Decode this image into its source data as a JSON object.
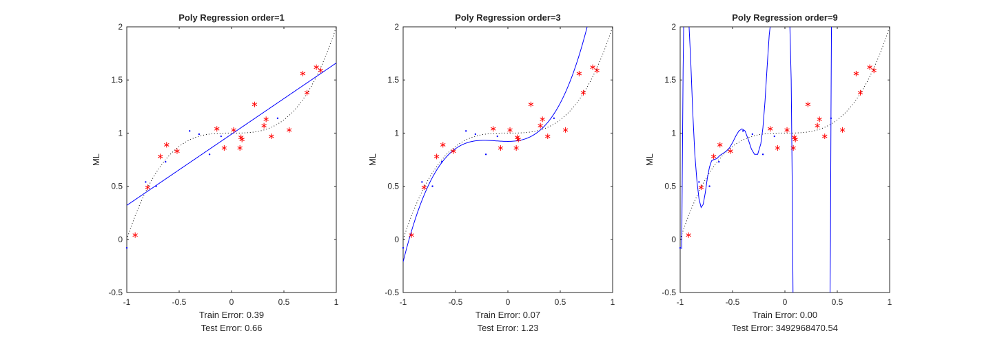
{
  "figure": {
    "background": "#ffffff"
  },
  "colors": {
    "train": "#ff0000",
    "test": "#0000ff",
    "fit": "#0000ff",
    "truth": "#000000",
    "axis": "#262626"
  },
  "chart_data": [
    {
      "type": "scatter",
      "title": "Poly Regression order=1",
      "ylabel": "ML",
      "xlim": [
        -1,
        1
      ],
      "ylim": [
        -0.5,
        2
      ],
      "xticks": [
        "-1",
        "-0.5",
        "0",
        "0.5",
        "1"
      ],
      "yticks": [
        "-0.5",
        "0",
        "0.5",
        "1",
        "1.5",
        "2"
      ],
      "grid": false,
      "order": 1,
      "coefficients": [
        0.99,
        0.67
      ],
      "train_error_label": "Train Error: 0.39",
      "test_error_label": "Test Error: 0.66",
      "series": [
        {
          "role": "train",
          "marker": "*",
          "x": [
            -0.92,
            -0.8,
            -0.68,
            -0.62,
            -0.52,
            -0.14,
            -0.07,
            0.02,
            0.08,
            0.09,
            0.1,
            0.22,
            0.31,
            0.33,
            0.38,
            0.55,
            0.68,
            0.72,
            0.81,
            0.85
          ],
          "y": [
            0.04,
            0.49,
            0.78,
            0.89,
            0.83,
            1.04,
            0.86,
            1.03,
            0.86,
            0.96,
            0.94,
            1.27,
            1.07,
            1.13,
            0.97,
            1.03,
            1.56,
            1.38,
            1.62,
            1.59
          ]
        },
        {
          "role": "test",
          "marker": ".",
          "x": [
            -1.0,
            -0.82,
            -0.72,
            -0.63,
            -0.4,
            -0.31,
            -0.21,
            -0.1,
            0.44
          ],
          "y": [
            -0.08,
            0.54,
            0.5,
            0.73,
            1.02,
            0.99,
            0.8,
            0.97,
            1.14
          ]
        },
        {
          "role": "truth",
          "style": "dotted",
          "function": "x^3 + 1"
        },
        {
          "role": "fit",
          "style": "solid",
          "function": "polynomial"
        }
      ]
    },
    {
      "type": "scatter",
      "title": "Poly Regression order=3",
      "ylabel": "ML",
      "xlim": [
        -1,
        1
      ],
      "ylim": [
        -0.5,
        2
      ],
      "xticks": [
        "-1",
        "-0.5",
        "0",
        "0.5",
        "1"
      ],
      "yticks": [
        "-0.5",
        "0",
        "0.5",
        "1",
        "1.5",
        "2"
      ],
      "grid": false,
      "order": 3,
      "coefficients": [
        0.922,
        0.0,
        0.5833,
        1.7167
      ],
      "train_error_label": "Train Error: 0.07",
      "test_error_label": "Test Error: 1.23",
      "series": [
        {
          "role": "train",
          "marker": "*",
          "x": [
            -0.92,
            -0.8,
            -0.68,
            -0.62,
            -0.52,
            -0.14,
            -0.07,
            0.02,
            0.08,
            0.09,
            0.1,
            0.22,
            0.31,
            0.33,
            0.38,
            0.55,
            0.68,
            0.72,
            0.81,
            0.85
          ],
          "y": [
            0.04,
            0.49,
            0.78,
            0.89,
            0.83,
            1.04,
            0.86,
            1.03,
            0.86,
            0.96,
            0.94,
            1.27,
            1.07,
            1.13,
            0.97,
            1.03,
            1.56,
            1.38,
            1.62,
            1.59
          ]
        },
        {
          "role": "test",
          "marker": ".",
          "x": [
            -1.0,
            -0.82,
            -0.72,
            -0.63,
            -0.4,
            -0.31,
            -0.21,
            -0.1,
            0.44
          ],
          "y": [
            -0.08,
            0.54,
            0.5,
            0.73,
            1.02,
            0.99,
            0.8,
            0.97,
            1.14
          ]
        },
        {
          "role": "truth",
          "style": "dotted",
          "function": "x^3 + 1"
        },
        {
          "role": "fit",
          "style": "solid",
          "function": "polynomial"
        }
      ]
    },
    {
      "type": "scatter",
      "title": "Poly Regression order=9",
      "ylabel": "ML",
      "xlim": [
        -1,
        1
      ],
      "ylim": [
        -0.5,
        2
      ],
      "xticks": [
        "-1",
        "-0.5",
        "0",
        "0.5",
        "1"
      ],
      "yticks": [
        "-0.5",
        "0",
        "0.5",
        "1",
        "1.5",
        "2"
      ],
      "grid": false,
      "order": 9,
      "train_error_label": "Train Error: 0.00",
      "test_error_label": "Test Error: 3492968470.54",
      "series": [
        {
          "role": "train",
          "marker": "*",
          "x": [
            -0.92,
            -0.8,
            -0.68,
            -0.62,
            -0.52,
            -0.14,
            -0.07,
            0.02,
            0.08,
            0.09,
            0.1,
            0.22,
            0.31,
            0.33,
            0.38,
            0.55,
            0.68,
            0.72,
            0.81,
            0.85
          ],
          "y": [
            0.04,
            0.49,
            0.78,
            0.89,
            0.83,
            1.04,
            0.86,
            1.03,
            0.86,
            0.96,
            0.94,
            1.27,
            1.07,
            1.13,
            0.97,
            1.03,
            1.56,
            1.38,
            1.62,
            1.59
          ]
        },
        {
          "role": "test",
          "marker": ".",
          "x": [
            -1.0,
            -0.82,
            -0.72,
            -0.63,
            -0.4,
            -0.31,
            -0.21,
            -0.1,
            0.44
          ],
          "y": [
            -0.08,
            0.54,
            0.5,
            0.73,
            1.02,
            0.99,
            0.8,
            0.97,
            1.14
          ]
        },
        {
          "role": "truth",
          "style": "dotted",
          "function": "x^3 + 1"
        },
        {
          "role": "fit",
          "style": "solid",
          "x": [
            -0.985,
            -0.98,
            -0.972,
            -0.965,
            -0.955,
            -0.94,
            -0.92,
            -0.9,
            -0.88,
            -0.86,
            -0.84,
            -0.82,
            -0.8,
            -0.78,
            -0.76,
            -0.74,
            -0.72,
            -0.7,
            -0.68,
            -0.65,
            -0.62,
            -0.59,
            -0.56,
            -0.53,
            -0.5,
            -0.47,
            -0.44,
            -0.41,
            -0.38,
            -0.35,
            -0.32,
            -0.29,
            -0.26,
            -0.23,
            -0.21,
            -0.19,
            -0.17,
            -0.15,
            -0.13,
            -0.11,
            -0.09,
            -0.07,
            -0.05,
            -0.03,
            -0.01,
            0.01,
            0.03,
            0.045,
            0.06,
            0.07,
            0.078,
            0.09,
            0.11,
            0.14,
            0.18,
            0.22,
            0.26,
            0.3,
            0.34,
            0.38,
            0.41,
            0.43,
            0.435,
            0.44,
            0.445,
            0.45
          ],
          "y": [
            -0.09,
            0.6,
            1.6,
            2.1,
            2.1,
            2.1,
            2.1,
            1.7,
            1.2,
            0.8,
            0.55,
            0.38,
            0.3,
            0.33,
            0.44,
            0.58,
            0.68,
            0.74,
            0.75,
            0.76,
            0.79,
            0.81,
            0.83,
            0.86,
            0.91,
            0.97,
            1.02,
            1.04,
            1.02,
            0.94,
            0.85,
            0.8,
            0.8,
            0.9,
            1.05,
            1.3,
            1.62,
            1.92,
            2.1,
            2.1,
            2.1,
            2.1,
            2.1,
            2.1,
            2.1,
            2.1,
            2.1,
            2.1,
            1.5,
            0.5,
            -0.6,
            -0.6,
            -0.6,
            -0.6,
            -0.6,
            -0.6,
            -0.6,
            -0.6,
            -0.6,
            -0.6,
            -0.6,
            -0.6,
            0.0,
            1.2,
            2.1,
            2.1
          ]
        }
      ]
    }
  ]
}
